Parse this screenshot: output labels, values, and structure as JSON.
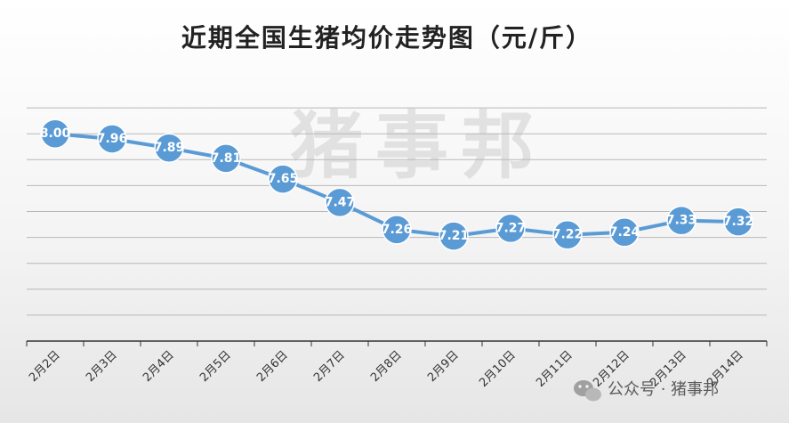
{
  "chart_data": {
    "type": "line",
    "title": "近期全国生猪均价走势图（元/斤）",
    "categories": [
      "2月2日",
      "2月3日",
      "2月4日",
      "2月5日",
      "2月6日",
      "2月7日",
      "2月8日",
      "2月9日",
      "2月10日",
      "2月11日",
      "2月12日",
      "2月13日",
      "2月14日"
    ],
    "series": [
      {
        "values": [
          8.0,
          7.96,
          7.89,
          7.81,
          7.65,
          7.47,
          7.26,
          7.21,
          7.27,
          7.22,
          7.24,
          7.33,
          7.32
        ]
      }
    ],
    "data_labels": [
      "8.00",
      "7.96",
      "7.89",
      "7.81",
      "7.65",
      "7.47",
      "7.26",
      "7.21",
      "7.27",
      "7.22",
      "7.24",
      "7.33",
      "7.32"
    ],
    "ylim": [
      6.4,
      8.4
    ],
    "y_gridlines": [
      6.6,
      6.8,
      7.0,
      7.2,
      7.4,
      7.6,
      7.8,
      8.0,
      8.2
    ],
    "xlabel": "",
    "ylabel": "",
    "grid": true,
    "legend": "none",
    "colors": {
      "line": "#5b9bd5",
      "marker": "#5b9bd5"
    }
  },
  "watermark": {
    "center": "猪事邦",
    "footer": "公众号 · 猪事邦"
  }
}
